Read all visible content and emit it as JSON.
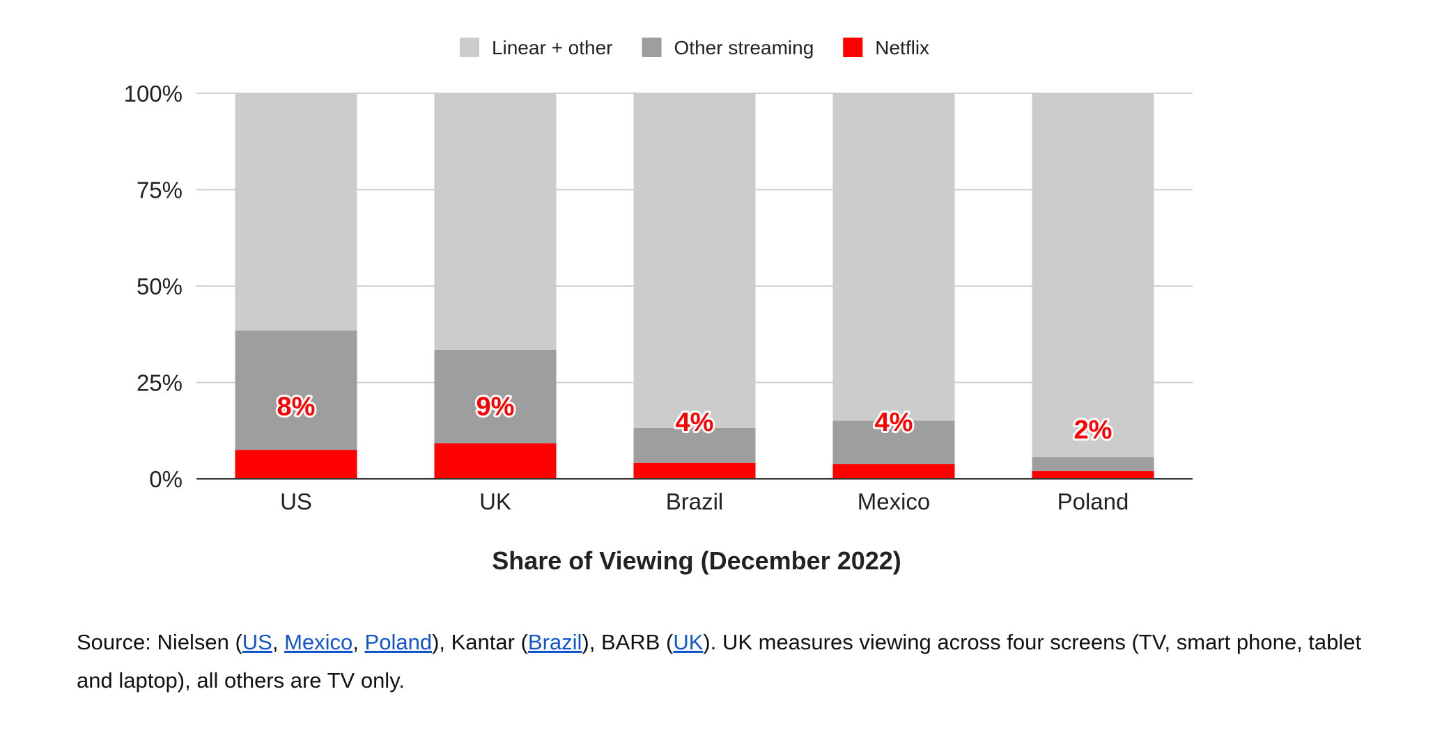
{
  "chart_data": {
    "type": "bar",
    "stacked": true,
    "title": "Share of Viewing (December 2022)",
    "categories": [
      "US",
      "UK",
      "Brazil",
      "Mexico",
      "Poland"
    ],
    "series": [
      {
        "name": "Netflix",
        "color": "#ff0000",
        "values": [
          7.5,
          9.2,
          4.2,
          3.8,
          2.0
        ]
      },
      {
        "name": "Other streaming",
        "color": "#9e9e9e",
        "values": [
          31.0,
          24.2,
          9.0,
          11.3,
          3.6
        ]
      },
      {
        "name": "Linear + other",
        "color": "#cccccc",
        "values": [
          61.5,
          66.6,
          86.8,
          84.9,
          94.4
        ]
      }
    ],
    "legend_order": [
      "Linear + other",
      "Other streaming",
      "Netflix"
    ],
    "legend_position": "top-center",
    "data_labels": [
      "8%",
      "9%",
      "4%",
      "4%",
      "2%"
    ],
    "data_label_positions": [
      19,
      19,
      15,
      15,
      13
    ],
    "y_ticks": [
      0,
      25,
      50,
      75,
      100
    ],
    "y_tick_labels": [
      "0%",
      "25%",
      "50%",
      "75%",
      "100%"
    ],
    "ylim": [
      0,
      100
    ],
    "grid": true,
    "xlabel": "",
    "ylabel": ""
  },
  "source": {
    "prefix": "Source: Nielsen (",
    "link_us": "US",
    "sep1": ", ",
    "link_mexico": "Mexico",
    "sep2": ", ",
    "link_poland": "Poland",
    "mid1": "), Kantar (",
    "link_brazil": "Brazil",
    "mid2": "), BARB (",
    "link_uk": "UK",
    "suffix": "). UK measures viewing across four screens (TV, smart phone, tablet and laptop), all others are TV only."
  }
}
